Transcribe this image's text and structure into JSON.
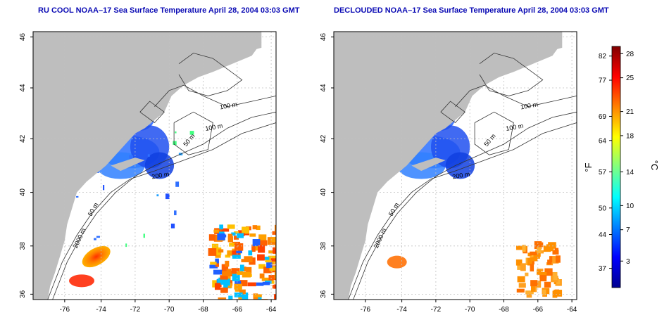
{
  "panels": [
    {
      "title": "RU COOL NOAA–17 Sea Surface Temperature April 28, 2004 03:03 GMT",
      "x_ticks": [
        "-76",
        "-74",
        "-72",
        "-70",
        "-68",
        "-66",
        "-64"
      ],
      "y_ticks": [
        "36",
        "38",
        "40",
        "42",
        "44",
        "46"
      ],
      "contour_labels": [
        "100 m",
        "100 m",
        "50 m",
        "200 m",
        "50 m",
        "2000 m"
      ]
    },
    {
      "title": "DECLOUDED NOAA–17 Sea Surface Temperature April 28, 2004 03:03 GMT",
      "x_ticks": [
        "-76",
        "-74",
        "-72",
        "-70",
        "-68",
        "-66",
        "-64"
      ],
      "y_ticks": [
        "36",
        "38",
        "40",
        "42",
        "44",
        "46"
      ],
      "contour_labels": [
        "100 m",
        "100 m",
        "50 m",
        "200 m",
        "50 m",
        "2000 m"
      ]
    }
  ],
  "colorbar": {
    "unit_f": "°F",
    "unit_c": "°C",
    "f_ticks": [
      "82",
      "77",
      "69",
      "64",
      "57",
      "50",
      "44",
      "37"
    ],
    "c_ticks": [
      "28",
      "25",
      "21",
      "18",
      "14",
      "10",
      "7",
      "3"
    ],
    "colors": [
      "#00008f",
      "#0000ff",
      "#0080ff",
      "#00ffff",
      "#80ff80",
      "#ffff00",
      "#ff8000",
      "#ff0000",
      "#800000"
    ]
  },
  "map_colors": {
    "land": "#bebebe",
    "ocean": "#ffffff",
    "grid": "#c0c0c0",
    "contour": "#333333"
  }
}
